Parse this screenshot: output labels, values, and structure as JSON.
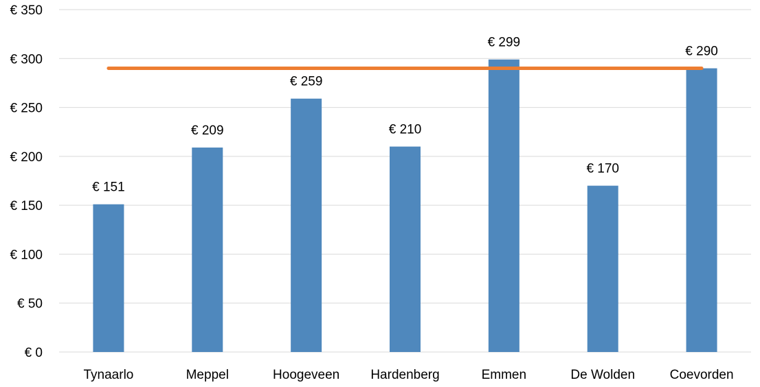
{
  "chart_data": {
    "type": "bar",
    "categories": [
      "Tynaarlo",
      "Meppel",
      "Hoogeveen",
      "Hardenberg",
      "Emmen",
      "De Wolden",
      "Coevorden"
    ],
    "values": [
      151,
      209,
      259,
      210,
      299,
      170,
      290
    ],
    "data_labels": [
      "€ 151",
      "€ 209",
      "€ 259",
      "€ 210",
      "€ 299",
      "€ 170",
      "€ 290"
    ],
    "reference_line": {
      "value": 290
    },
    "ylim": [
      0,
      350
    ],
    "yticks": [
      0,
      50,
      100,
      150,
      200,
      250,
      300,
      350
    ],
    "ytick_labels": [
      "€ 0",
      "€ 50",
      "€ 100",
      "€ 150",
      "€ 200",
      "€ 250",
      "€ 300",
      "€ 350"
    ],
    "title": "",
    "xlabel": "",
    "ylabel": "",
    "grid": true,
    "legend": "none",
    "colors": {
      "bar": "#4f88bd",
      "reference_line": "#ed7d31"
    }
  }
}
